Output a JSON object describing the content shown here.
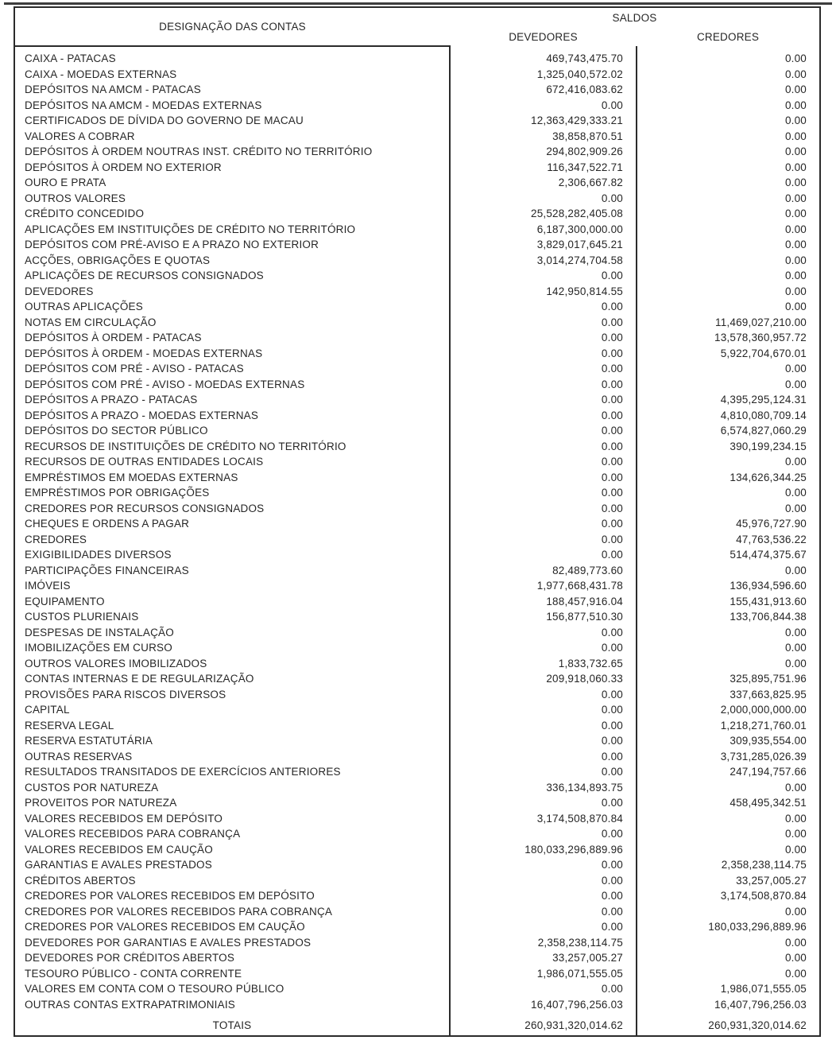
{
  "table": {
    "header": {
      "designacao": "DESIGNAÇÃO DAS CONTAS",
      "saldos": "SALDOS",
      "devedores": "DEVEDORES",
      "credores": "CREDORES"
    },
    "rows": [
      [
        "CAIXA - PATACAS",
        "469,743,475.70",
        "0.00"
      ],
      [
        "CAIXA - MOEDAS EXTERNAS",
        "1,325,040,572.02",
        "0.00"
      ],
      [
        "DEPÓSITOS NA AMCM - PATACAS",
        "672,416,083.62",
        "0.00"
      ],
      [
        "DEPÓSITOS NA AMCM - MOEDAS EXTERNAS",
        "0.00",
        "0.00"
      ],
      [
        "CERTIFICADOS DE DÍVIDA DO GOVERNO DE MACAU",
        "12,363,429,333.21",
        "0.00"
      ],
      [
        "VALORES A COBRAR",
        "38,858,870.51",
        "0.00"
      ],
      [
        "DEPÓSITOS À ORDEM NOUTRAS INST. CRÉDITO NO TERRITÓRIO",
        "294,802,909.26",
        "0.00"
      ],
      [
        "DEPÓSITOS À ORDEM NO EXTERIOR",
        "116,347,522.71",
        "0.00"
      ],
      [
        "OURO E PRATA",
        "2,306,667.82",
        "0.00"
      ],
      [
        "OUTROS VALORES",
        "0.00",
        "0.00"
      ],
      [
        "CRÉDITO CONCEDIDO",
        "25,528,282,405.08",
        "0.00"
      ],
      [
        "APLICAÇÕES EM INSTITUIÇÕES DE CRÉDITO NO TERRITÓRIO",
        "6,187,300,000.00",
        "0.00"
      ],
      [
        "DEPÓSITOS COM PRÉ-AVISO E A PRAZO NO EXTERIOR",
        "3,829,017,645.21",
        "0.00"
      ],
      [
        "ACÇÕES, OBRIGAÇÕES E QUOTAS",
        "3,014,274,704.58",
        "0.00"
      ],
      [
        "APLICAÇÕES DE RECURSOS CONSIGNADOS",
        "0.00",
        "0.00"
      ],
      [
        "DEVEDORES",
        "142,950,814.55",
        "0.00"
      ],
      [
        "OUTRAS APLICAÇÕES",
        "0.00",
        "0.00"
      ],
      [
        "NOTAS EM CIRCULAÇÃO",
        "0.00",
        "11,469,027,210.00"
      ],
      [
        "DEPÓSITOS À ORDEM - PATACAS",
        "0.00",
        "13,578,360,957.72"
      ],
      [
        "DEPÓSITOS À ORDEM - MOEDAS EXTERNAS",
        "0.00",
        "5,922,704,670.01"
      ],
      [
        "DEPÓSITOS COM PRÉ - AVISO - PATACAS",
        "0.00",
        "0.00"
      ],
      [
        "DEPÓSITOS COM PRÉ - AVISO - MOEDAS EXTERNAS",
        "0.00",
        "0.00"
      ],
      [
        "DEPÓSITOS A PRAZO - PATACAS",
        "0.00",
        "4,395,295,124.31"
      ],
      [
        "DEPÓSITOS A PRAZO - MOEDAS EXTERNAS",
        "0.00",
        "4,810,080,709.14"
      ],
      [
        "DEPÓSITOS DO SECTOR PÚBLICO",
        "0.00",
        "6,574,827,060.29"
      ],
      [
        "RECURSOS DE INSTITUIÇÕES DE CRÉDITO NO TERRITÓRIO",
        "0.00",
        "390,199,234.15"
      ],
      [
        "RECURSOS DE OUTRAS ENTIDADES LOCAIS",
        "0.00",
        "0.00"
      ],
      [
        "EMPRÉSTIMOS EM MOEDAS EXTERNAS",
        "0.00",
        "134,626,344.25"
      ],
      [
        "EMPRÉSTIMOS POR OBRIGAÇÕES",
        "0.00",
        "0.00"
      ],
      [
        "CREDORES POR RECURSOS CONSIGNADOS",
        "0.00",
        "0.00"
      ],
      [
        "CHEQUES E ORDENS A PAGAR",
        "0.00",
        "45,976,727.90"
      ],
      [
        "CREDORES",
        "0.00",
        "47,763,536.22"
      ],
      [
        "EXIGIBILIDADES DIVERSOS",
        "0.00",
        "514,474,375.67"
      ],
      [
        "PARTICIPAÇÕES FINANCEIRAS",
        "82,489,773.60",
        "0.00"
      ],
      [
        "IMÓVEIS",
        "1,977,668,431.78",
        "136,934,596.60"
      ],
      [
        "EQUIPAMENTO",
        "188,457,916.04",
        "155,431,913.60"
      ],
      [
        "CUSTOS PLURIENAIS",
        "156,877,510.30",
        "133,706,844.38"
      ],
      [
        "DESPESAS DE INSTALAÇÃO",
        "0.00",
        "0.00"
      ],
      [
        "IMOBILIZAÇÕES EM CURSO",
        "0.00",
        "0.00"
      ],
      [
        "OUTROS VALORES IMOBILIZADOS",
        "1,833,732.65",
        "0.00"
      ],
      [
        "CONTAS INTERNAS E DE REGULARIZAÇÃO",
        "209,918,060.33",
        "325,895,751.96"
      ],
      [
        "PROVISÕES PARA RISCOS DIVERSOS",
        "0.00",
        "337,663,825.95"
      ],
      [
        "CAPITAL",
        "0.00",
        "2,000,000,000.00"
      ],
      [
        "RESERVA LEGAL",
        "0.00",
        "1,218,271,760.01"
      ],
      [
        "RESERVA ESTATUTÁRIA",
        "0.00",
        "309,935,554.00"
      ],
      [
        "OUTRAS RESERVAS",
        "0.00",
        "3,731,285,026.39"
      ],
      [
        "RESULTADOS TRANSITADOS DE EXERCÍCIOS ANTERIORES",
        "0.00",
        "247,194,757.66"
      ],
      [
        "CUSTOS POR NATUREZA",
        "336,134,893.75",
        "0.00"
      ],
      [
        "PROVEITOS POR NATUREZA",
        "0.00",
        "458,495,342.51"
      ],
      [
        "VALORES RECEBIDOS EM DEPÓSITO",
        "3,174,508,870.84",
        "0.00"
      ],
      [
        "VALORES RECEBIDOS PARA COBRANÇA",
        "0.00",
        "0.00"
      ],
      [
        "VALORES RECEBIDOS EM CAUÇÃO",
        "180,033,296,889.96",
        "0.00"
      ],
      [
        "GARANTIAS E AVALES PRESTADOS",
        "0.00",
        "2,358,238,114.75"
      ],
      [
        "CRÉDITOS ABERTOS",
        "0.00",
        "33,257,005.27"
      ],
      [
        "CREDORES POR VALORES RECEBIDOS EM DEPÓSITO",
        "0.00",
        "3,174,508,870.84"
      ],
      [
        "CREDORES POR VALORES RECEBIDOS PARA COBRANÇA",
        "0.00",
        "0.00"
      ],
      [
        "CREDORES POR VALORES RECEBIDOS EM CAUÇÃO",
        "0.00",
        "180,033,296,889.96"
      ],
      [
        "DEVEDORES POR GARANTIAS E AVALES PRESTADOS",
        "2,358,238,114.75",
        "0.00"
      ],
      [
        "DEVEDORES POR CRÉDITOS ABERTOS",
        "33,257,005.27",
        "0.00"
      ],
      [
        "TESOURO PÚBLICO - CONTA CORRENTE",
        "1,986,071,555.05",
        "0.00"
      ],
      [
        "VALORES EM CONTA COM O TESOURO PÚBLICO",
        "0.00",
        "1,986,071,555.05"
      ],
      [
        "OUTRAS CONTAS EXTRAPATRIMONIAIS",
        "16,407,796,256.03",
        "16,407,796,256.03"
      ]
    ],
    "totals": {
      "label": "TOTAIS",
      "devedores": "260,931,320,014.62",
      "credores": "260,931,320,014.62"
    }
  },
  "colors": {
    "ink": "#262626",
    "border": "#2b2b2b",
    "paper": "#ffffff"
  }
}
